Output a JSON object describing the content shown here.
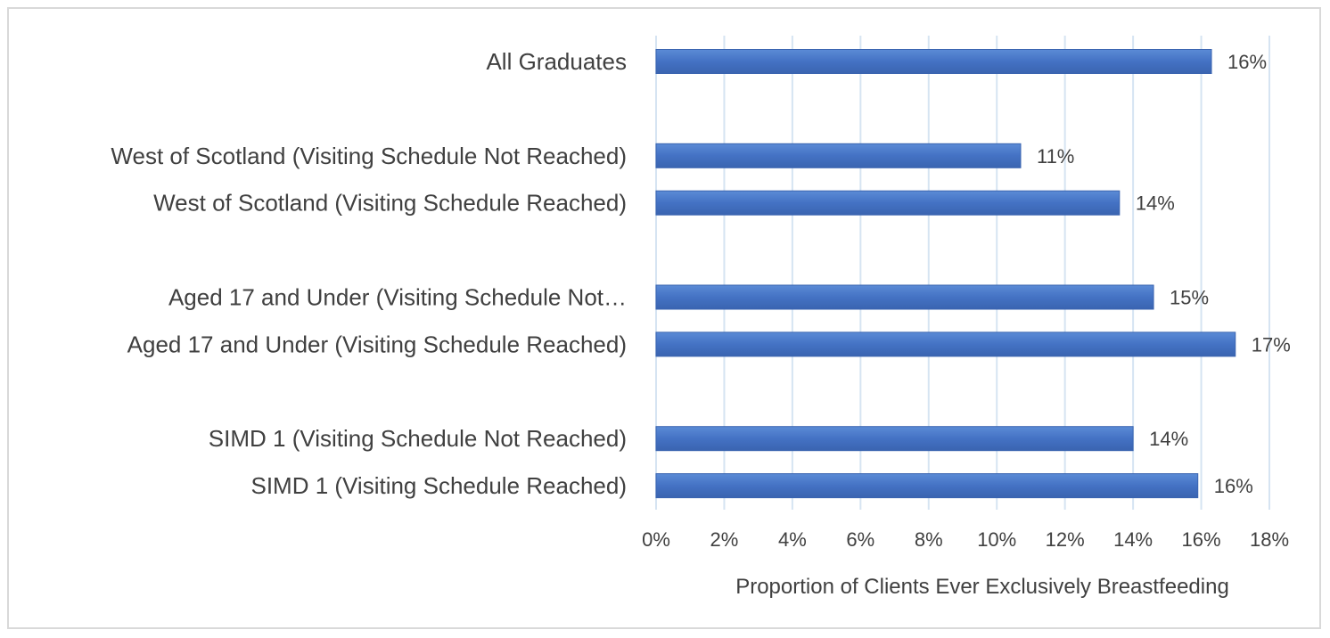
{
  "chart_data": {
    "type": "bar",
    "orientation": "horizontal",
    "categories": [
      "All Graduates",
      "",
      "West of Scotland (Visiting Schedule Not Reached)",
      "West of Scotland (Visiting Schedule Reached)",
      "",
      "Aged 17 and Under (Visiting Schedule Not…",
      "Aged 17 and Under (Visiting Schedule Reached)",
      "",
      "SIMD 1 (Visiting Schedule Not Reached)",
      "SIMD 1 (Visiting Schedule Reached)"
    ],
    "values": [
      0.163,
      null,
      0.107,
      0.136,
      null,
      0.146,
      0.17,
      null,
      0.14,
      0.159
    ],
    "data_labels": [
      "16%",
      "",
      "11%",
      "14%",
      "",
      "15%",
      "17%",
      "",
      "14%",
      "16%"
    ],
    "xlabel": "Proportion of Clients Ever Exclusively  Breastfeeding",
    "ylabel": "",
    "xlim": [
      0,
      0.18
    ],
    "xticks": [
      0,
      0.02,
      0.04,
      0.06,
      0.08,
      0.1,
      0.12,
      0.14,
      0.16,
      0.18
    ],
    "xtick_labels": [
      "0%",
      "2%",
      "4%",
      "6%",
      "8%",
      "10%",
      "12%",
      "14%",
      "16%",
      "18%"
    ],
    "grid": "vertical",
    "legend": "none",
    "colors": {
      "bar": "#4472c4",
      "bar_light": "#5b8bd6",
      "bar_dark": "#3a64b0",
      "grid": "#d6e4f2"
    }
  }
}
